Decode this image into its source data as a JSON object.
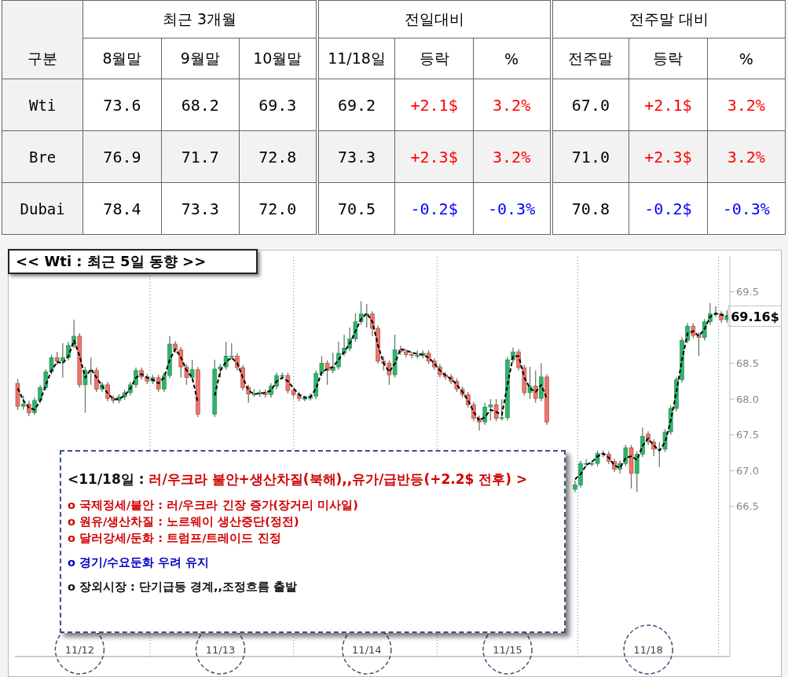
{
  "chart_data": [
    {
      "type": "heatmap",
      "categories": [
        "8월말",
        "9월말",
        "10월말",
        "11/18일",
        "등락",
        "%",
        "전주말",
        "등락",
        "%"
      ],
      "y_categories": [
        "Wti",
        "Bre",
        "Dubai"
      ],
      "cells": [
        [
          73.6,
          68.2,
          69.3,
          69.2,
          2.1,
          3.2,
          67.0,
          2.1,
          3.2
        ],
        [
          76.9,
          71.7,
          72.8,
          73.3,
          2.3,
          3.2,
          71.0,
          2.3,
          3.2
        ],
        [
          78.4,
          73.3,
          72.0,
          70.5,
          -0.2,
          -0.3,
          70.8,
          -0.2,
          -0.3
        ]
      ],
      "cell_labels": [
        [
          "73.6",
          "68.2",
          "69.3",
          "69.2",
          "+2.1$",
          "3.2%",
          "67.0",
          "+2.1$",
          "3.2%"
        ],
        [
          "76.9",
          "71.7",
          "72.8",
          "73.3",
          "+2.3$",
          "3.2%",
          "71.0",
          "+2.3$",
          "3.2%"
        ],
        [
          "78.4",
          "73.3",
          "72.0",
          "70.5",
          "-0.2$",
          "-0.3%",
          "70.8",
          "-0.2$",
          "-0.3%"
        ]
      ],
      "annotations": [
        "구분",
        "최근 3개월",
        "전일대비",
        "전주말 대비"
      ]
    },
    {
      "type": "candlestick",
      "title": "<< Wti : 최근 5일 동향 >>",
      "categories": [
        null,
        null,
        null,
        null,
        null,
        null,
        null,
        null,
        null,
        null,
        null,
        "11/12",
        null,
        null,
        null,
        null,
        null,
        null,
        null,
        null,
        null,
        null,
        null,
        null,
        null,
        null,
        null,
        null,
        null,
        null,
        null,
        null,
        null,
        null,
        null,
        null,
        "11/13",
        null,
        null,
        null,
        null,
        null,
        null,
        null,
        null,
        null,
        null,
        null,
        null,
        null,
        null,
        null,
        null,
        null,
        null,
        null,
        null,
        null,
        null,
        null,
        null,
        null,
        "11/14",
        null,
        null,
        null,
        null,
        null,
        null,
        null,
        null,
        null,
        null,
        null,
        null,
        null,
        null,
        null,
        null,
        null,
        null,
        null,
        null,
        null,
        null,
        null,
        null,
        "11/15",
        null,
        null,
        null,
        null,
        null,
        null,
        null,
        null,
        null,
        null,
        null,
        null,
        null,
        null,
        null,
        null,
        null,
        null,
        null,
        null,
        null,
        null,
        null,
        null,
        "11/18",
        null,
        null,
        null,
        null,
        null,
        null,
        null,
        null,
        null,
        null,
        null,
        null,
        null,
        null
      ],
      "ohlc": [
        [
          68.22,
          68.28,
          67.85,
          67.9
        ],
        [
          67.9,
          68.05,
          67.85,
          67.93
        ],
        [
          67.93,
          67.98,
          67.76,
          67.81
        ],
        [
          67.81,
          68.02,
          67.78,
          67.98
        ],
        [
          67.98,
          68.2,
          67.94,
          68.16
        ],
        [
          68.16,
          68.42,
          68.12,
          68.38
        ],
        [
          68.38,
          68.62,
          68.34,
          68.58
        ],
        [
          68.58,
          68.66,
          68.48,
          68.53
        ],
        [
          68.53,
          68.78,
          68.3,
          68.58
        ],
        [
          68.58,
          68.8,
          68.54,
          68.75
        ],
        [
          68.75,
          69.11,
          68.71,
          68.88
        ],
        [
          68.88,
          68.92,
          68.16,
          68.2
        ],
        [
          68.2,
          68.45,
          67.81,
          68.4
        ],
        [
          68.4,
          68.58,
          68.2,
          68.4
        ],
        [
          68.4,
          68.44,
          68.1,
          68.14
        ],
        [
          68.14,
          68.24,
          68.1,
          68.2
        ],
        [
          68.2,
          68.24,
          67.97,
          68.01
        ],
        [
          68.01,
          68.05,
          67.94,
          67.98
        ],
        [
          67.98,
          68.07,
          67.94,
          68.03
        ],
        [
          68.03,
          68.13,
          67.99,
          68.09
        ],
        [
          68.09,
          68.24,
          68.05,
          68.2
        ],
        [
          68.2,
          68.44,
          68.16,
          68.4
        ],
        [
          68.4,
          68.44,
          68.27,
          68.31
        ],
        [
          68.31,
          68.35,
          68.21,
          68.25
        ],
        [
          68.25,
          68.34,
          68.21,
          68.3
        ],
        [
          68.3,
          68.34,
          68.1,
          68.14
        ],
        [
          68.14,
          68.37,
          68.1,
          68.33
        ],
        [
          68.33,
          68.88,
          68.29,
          68.77
        ],
        [
          68.77,
          68.81,
          68.65,
          68.69
        ],
        [
          68.69,
          68.73,
          68.3,
          68.45
        ],
        [
          68.45,
          68.49,
          68.2,
          68.3
        ],
        [
          68.3,
          68.55,
          68.26,
          68.41
        ],
        [
          68.41,
          68.45,
          67.75,
          67.79
        ],
        null,
        null,
        [
          67.79,
          68.55,
          67.75,
          68.42
        ],
        [
          68.42,
          68.49,
          68.3,
          68.45
        ],
        [
          68.45,
          68.8,
          68.41,
          68.6
        ],
        [
          68.6,
          68.78,
          68.56,
          68.6
        ],
        [
          68.6,
          68.64,
          68.4,
          68.44
        ],
        [
          68.44,
          68.48,
          68.12,
          68.16
        ],
        [
          68.16,
          68.2,
          67.95,
          68.07
        ],
        [
          68.07,
          68.14,
          68.03,
          68.07
        ],
        [
          68.07,
          68.13,
          68.03,
          68.09
        ],
        [
          68.09,
          68.13,
          68.02,
          68.06
        ],
        [
          68.06,
          68.22,
          68.02,
          68.18
        ],
        [
          68.18,
          68.37,
          68.14,
          68.33
        ],
        [
          68.33,
          68.37,
          68.29,
          68.33
        ],
        [
          68.33,
          68.37,
          68.08,
          68.12
        ],
        [
          68.12,
          68.16,
          68.02,
          68.06
        ],
        [
          68.06,
          68.1,
          67.97,
          68.01
        ],
        [
          68.01,
          68.05,
          67.97,
          68.01
        ],
        [
          68.01,
          68.08,
          67.98,
          68.04
        ],
        [
          68.04,
          68.4,
          68.0,
          68.36
        ],
        [
          68.36,
          68.6,
          68.32,
          68.5
        ],
        [
          68.5,
          68.54,
          68.2,
          68.4
        ],
        [
          68.4,
          68.65,
          68.36,
          68.45
        ],
        [
          68.45,
          68.8,
          68.41,
          68.64
        ],
        [
          68.64,
          68.9,
          68.6,
          68.71
        ],
        [
          68.71,
          69.0,
          68.67,
          68.84
        ],
        [
          68.84,
          69.2,
          68.8,
          69.08
        ],
        [
          69.08,
          69.37,
          69.04,
          69.19
        ],
        [
          69.19,
          69.33,
          69.0,
          69.19
        ],
        [
          69.19,
          69.23,
          68.88,
          68.99
        ],
        [
          68.99,
          69.03,
          68.49,
          68.53
        ],
        [
          68.53,
          68.6,
          68.4,
          68.5
        ],
        [
          68.5,
          68.54,
          68.2,
          68.34
        ],
        [
          68.34,
          68.9,
          68.3,
          68.69
        ],
        [
          68.69,
          68.75,
          68.62,
          68.66
        ],
        [
          68.66,
          68.7,
          68.58,
          68.62
        ],
        [
          68.62,
          68.66,
          68.57,
          68.61
        ],
        [
          68.61,
          68.68,
          68.57,
          68.61
        ],
        [
          68.61,
          68.68,
          68.57,
          68.64
        ],
        [
          68.64,
          68.68,
          68.49,
          68.53
        ],
        [
          68.53,
          68.57,
          68.41,
          68.45
        ],
        [
          68.45,
          68.49,
          68.3,
          68.34
        ],
        [
          68.34,
          68.38,
          68.27,
          68.31
        ],
        [
          68.31,
          68.35,
          68.21,
          68.25
        ],
        [
          68.25,
          68.29,
          68.1,
          68.14
        ],
        [
          68.14,
          68.18,
          68.02,
          68.06
        ],
        [
          68.06,
          68.1,
          67.88,
          67.92
        ],
        [
          67.92,
          67.96,
          67.69,
          67.73
        ],
        [
          67.73,
          67.77,
          67.56,
          67.68
        ],
        [
          67.68,
          67.95,
          67.64,
          67.89
        ],
        [
          67.89,
          68.0,
          67.7,
          67.92
        ],
        [
          67.92,
          68.0,
          67.69,
          67.73
        ],
        [
          67.73,
          68.0,
          67.7,
          67.74
        ],
        [
          67.74,
          68.59,
          67.7,
          68.55
        ],
        [
          68.55,
          68.72,
          68.51,
          68.66
        ],
        [
          68.66,
          68.7,
          68.4,
          68.44
        ],
        [
          68.44,
          68.48,
          68.05,
          68.09
        ],
        [
          68.09,
          68.45,
          68.0,
          68.18
        ],
        [
          68.18,
          68.4,
          67.95,
          68.01
        ],
        [
          68.01,
          68.5,
          67.97,
          68.31
        ],
        [
          68.31,
          68.35,
          67.64,
          67.68
        ],
        null,
        null,
        null,
        null,
        [
          66.74,
          66.86,
          66.7,
          66.8
        ],
        [
          66.8,
          67.14,
          66.76,
          67.1
        ],
        [
          67.1,
          67.16,
          67.06,
          67.1
        ],
        [
          67.1,
          67.14,
          67.06,
          67.1
        ],
        [
          67.1,
          67.28,
          67.06,
          67.24
        ],
        [
          67.24,
          67.28,
          67.19,
          67.23
        ],
        [
          67.23,
          67.27,
          67.09,
          67.13
        ],
        [
          67.13,
          67.17,
          66.98,
          67.02
        ],
        [
          67.02,
          67.14,
          66.96,
          67.1
        ],
        [
          67.1,
          67.36,
          67.06,
          67.32
        ],
        [
          67.32,
          67.36,
          66.75,
          66.96
        ],
        [
          66.96,
          67.27,
          66.7,
          67.23
        ],
        [
          67.23,
          67.6,
          67.19,
          67.48
        ],
        [
          67.51,
          67.55,
          67.36,
          67.4
        ],
        [
          67.4,
          67.44,
          67.2,
          67.3
        ],
        [
          67.3,
          67.4,
          67.05,
          67.3
        ],
        [
          67.3,
          67.58,
          67.26,
          67.54
        ],
        [
          67.54,
          67.91,
          67.5,
          67.87
        ],
        [
          67.87,
          68.31,
          67.83,
          68.27
        ],
        [
          68.27,
          68.86,
          68.23,
          68.82
        ],
        [
          68.82,
          69.06,
          68.78,
          69.02
        ],
        [
          69.02,
          69.06,
          68.85,
          68.89
        ],
        [
          68.89,
          68.93,
          68.6,
          68.86
        ],
        [
          68.86,
          69.12,
          68.82,
          69.08
        ],
        [
          69.08,
          69.34,
          69.04,
          69.19
        ],
        [
          69.19,
          69.3,
          69.15,
          69.19
        ],
        [
          69.19,
          69.23,
          69.07,
          69.11
        ],
        [
          69.11,
          69.24,
          69.07,
          69.16
        ]
      ],
      "series": [
        {
          "type": "line",
          "color": "#000000",
          "line_style": "dashed",
          "values": [
            68.15,
            67.98,
            67.88,
            67.85,
            67.98,
            68.2,
            68.4,
            68.52,
            68.5,
            68.6,
            68.82,
            68.6,
            68.3,
            68.42,
            68.3,
            68.18,
            68.08,
            68.0,
            68.0,
            68.05,
            68.15,
            68.3,
            68.35,
            68.3,
            68.27,
            68.22,
            68.3,
            68.55,
            68.7,
            68.58,
            68.4,
            68.3,
            67.95,
            null,
            null,
            68.05,
            68.4,
            68.52,
            68.58,
            68.5,
            68.3,
            68.12,
            68.07,
            68.08,
            68.09,
            68.12,
            68.25,
            68.3,
            68.25,
            68.15,
            68.06,
            68.02,
            68.03,
            68.15,
            68.38,
            68.42,
            68.45,
            68.55,
            68.66,
            68.78,
            68.95,
            69.12,
            69.2,
            69.08,
            68.75,
            68.5,
            68.38,
            68.5,
            68.7,
            68.68,
            68.65,
            68.63,
            68.62,
            68.58,
            68.5,
            68.4,
            68.33,
            68.28,
            68.2,
            68.1,
            67.98,
            67.82,
            67.7,
            67.75,
            67.85,
            67.82,
            67.78,
            68.2,
            68.6,
            68.6,
            68.3,
            68.15,
            68.1,
            68.2,
            68.0,
            null,
            null,
            null,
            null,
            66.88,
            66.95,
            67.08,
            67.12,
            67.2,
            67.24,
            67.18,
            67.07,
            67.04,
            67.18,
            67.2,
            67.15,
            67.35,
            67.45,
            67.35,
            67.28,
            67.4,
            67.7,
            68.1,
            68.55,
            68.92,
            68.95,
            68.88,
            68.98,
            69.15,
            69.2,
            69.18,
            69.16
          ]
        }
      ],
      "ylim": [
        64.4,
        70.0
      ],
      "yticks": [
        66.5,
        {
          "value": 67,
          "label": "67.0"
        },
        67.5,
        {
          "value": 68,
          "label": "68.0"
        },
        68.5,
        69.5
      ],
      "annotations": [
        "69.16$",
        "<11/18일 : 러/우크라 불안+생산차질(북해),,유가/급반등(+2.2$ 전후) >",
        "o 국제정세/불안 : 러/우크라 긴장 증가(장거리 미사일)",
        "o 원유/생산차질 : 노르웨이 생산중단(정전)",
        "o 달러강세/둔화 : 트럼프/트레이드 진정",
        "o 경기/수요둔화 우려 유지",
        "o 장외시장 : 단기급등 경계,,조정흐름 출발"
      ]
    }
  ]
}
